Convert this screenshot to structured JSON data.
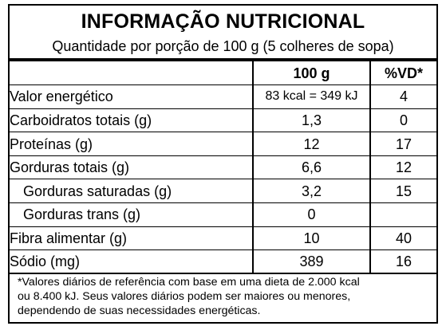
{
  "title": "INFORMAÇÃO NUTRICIONAL",
  "portion": "Quantidade por porção de 100 g (5 colheres de sopa)",
  "headers": {
    "amount": "100 g",
    "dv": "%VD*"
  },
  "rows": [
    {
      "name": "Valor energético",
      "value": "83 kcal = 349 kJ",
      "dv": "4"
    },
    {
      "name": "Carboidratos totais (g)",
      "value": "1,3",
      "dv": "0"
    },
    {
      "name": "Proteínas (g)",
      "value": "12",
      "dv": "17"
    },
    {
      "name": "Gorduras totais (g)",
      "value": "6,6",
      "dv": "12"
    },
    {
      "name": "Gorduras saturadas (g)",
      "value": "3,2",
      "dv": "15"
    },
    {
      "name": "Gorduras trans (g)",
      "value": "0",
      "dv": ""
    },
    {
      "name": "Fibra alimentar (g)",
      "value": "10",
      "dv": "40"
    },
    {
      "name": "Sódio (mg)",
      "value": "389",
      "dv": "16"
    }
  ],
  "footnote": {
    "line1": "*Valores diários de referência com base em uma dieta de 2.000 kcal",
    "line2": "ou 8.400 kJ. Seus valores diários podem ser maiores ou menores,",
    "line3": "dependendo de suas necessidades energéticas."
  }
}
